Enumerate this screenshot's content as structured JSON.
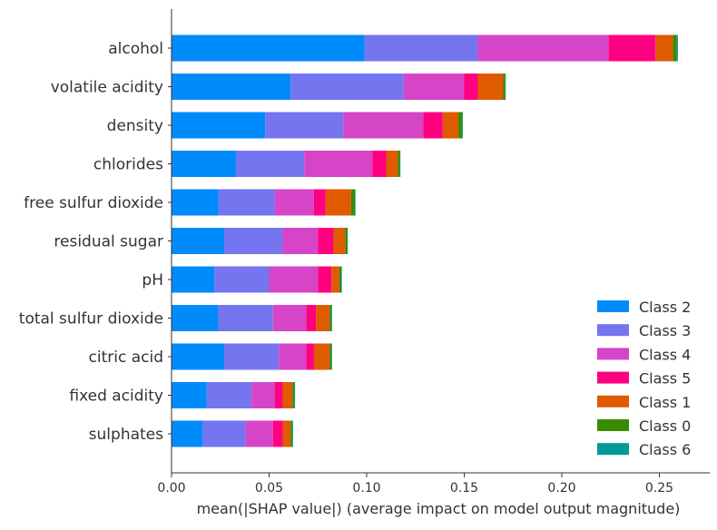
{
  "chart_data": {
    "type": "bar",
    "orientation": "horizontal",
    "stacked": true,
    "categories": [
      "alcohol",
      "volatile acidity",
      "density",
      "chlorides",
      "free sulfur dioxide",
      "residual sugar",
      "pH",
      "total sulfur dioxide",
      "citric acid",
      "fixed acidity",
      "sulphates"
    ],
    "series": [
      {
        "name": "Class 2",
        "color": "#008bfb",
        "values": [
          0.099,
          0.061,
          0.048,
          0.033,
          0.024,
          0.027,
          0.022,
          0.024,
          0.027,
          0.018,
          0.016
        ]
      },
      {
        "name": "Class 3",
        "color": "#7575f0",
        "values": [
          0.058,
          0.058,
          0.04,
          0.035,
          0.029,
          0.03,
          0.028,
          0.028,
          0.028,
          0.023,
          0.022
        ]
      },
      {
        "name": "Class 4",
        "color": "#d645c8",
        "values": [
          0.067,
          0.031,
          0.041,
          0.035,
          0.02,
          0.018,
          0.025,
          0.017,
          0.014,
          0.012,
          0.014
        ]
      },
      {
        "name": "Class 5",
        "color": "#ff0080",
        "values": [
          0.024,
          0.007,
          0.01,
          0.007,
          0.006,
          0.008,
          0.007,
          0.005,
          0.004,
          0.004,
          0.005
        ]
      },
      {
        "name": "Class 1",
        "color": "#e05a00",
        "values": [
          0.009,
          0.013,
          0.008,
          0.006,
          0.013,
          0.006,
          0.004,
          0.007,
          0.008,
          0.005,
          0.004
        ]
      },
      {
        "name": "Class 0",
        "color": "#3a8b00",
        "values": [
          0.002,
          0.001,
          0.002,
          0.001,
          0.002,
          0.001,
          0.001,
          0.001,
          0.001,
          0.001,
          0.001
        ]
      },
      {
        "name": "Class 6",
        "color": "#009a9a",
        "values": [
          0.0005,
          0.0003,
          0.0003,
          0.0003,
          0.0003,
          0.0003,
          0.0003,
          0.0003,
          0.0003,
          0.0003,
          0.0003
        ]
      }
    ],
    "xlabel": "mean(|SHAP value|) (average impact on model output magnitude)",
    "ylabel": "",
    "title": "",
    "xlim": [
      0,
      0.275
    ],
    "xticks": [
      0.0,
      0.05,
      0.1,
      0.15,
      0.2,
      0.25
    ],
    "xtick_labels": [
      "0.00",
      "0.05",
      "0.10",
      "0.15",
      "0.20",
      "0.25"
    ],
    "legend": {
      "placement": "bottom-right",
      "order": [
        "Class 2",
        "Class 3",
        "Class 4",
        "Class 5",
        "Class 1",
        "Class 0",
        "Class 6"
      ]
    },
    "grid": false
  }
}
